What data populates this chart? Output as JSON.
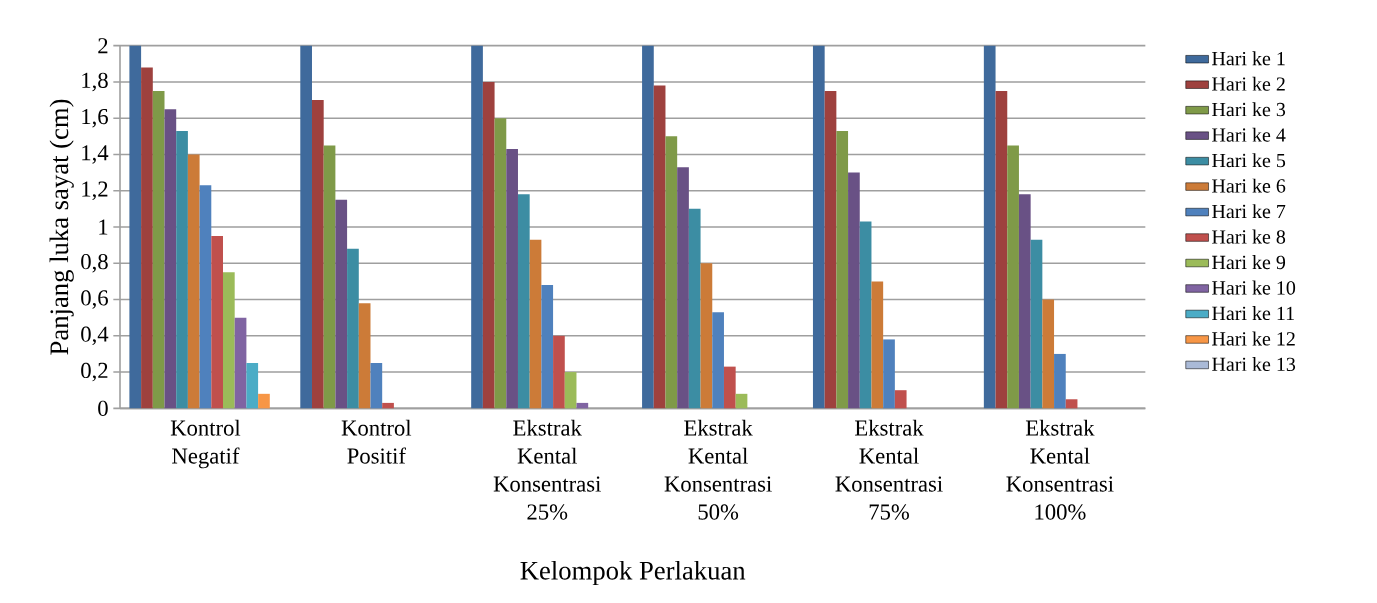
{
  "chart_data": {
    "type": "bar",
    "xlabel": "Kelompok Perlakuan",
    "ylabel": "Panjang luka sayat (cm)",
    "categories": [
      "Kontrol Negatif",
      "Kontrol Positif",
      "Ekstrak Kental Konsentrasi 25%",
      "Ekstrak Kental Konsentrasi 50%",
      "Ekstrak Kental Konsentrasi 75%",
      "Ekstrak Kental Konsentrasi 100%"
    ],
    "ylim": [
      0,
      2
    ],
    "yticks": [
      0,
      {
        "value": 0.2,
        "label": "0,2"
      },
      {
        "value": 0.4,
        "label": "0,4"
      },
      {
        "value": 0.6,
        "label": "0,6"
      },
      {
        "value": 0.8,
        "label": "0,8"
      },
      1,
      {
        "value": 1.2,
        "label": "1,2"
      },
      {
        "value": 1.4,
        "label": "1,4"
      },
      {
        "value": 1.6,
        "label": "1,6"
      },
      {
        "value": 1.8,
        "label": "1,8"
      },
      2
    ],
    "grid": "y",
    "legend": "right",
    "series": [
      {
        "name": "Hari ke 1",
        "color": "#3f6a9c",
        "values": [
          2,
          2,
          2,
          2,
          2,
          2
        ]
      },
      {
        "name": "Hari ke 2",
        "color": "#9e413e",
        "values": [
          1.88,
          1.7,
          1.8,
          1.78,
          1.75,
          1.75
        ]
      },
      {
        "name": "Hari ke 3",
        "color": "#7f9a48",
        "values": [
          1.75,
          1.45,
          1.6,
          1.5,
          1.53,
          1.45
        ]
      },
      {
        "name": "Hari ke 4",
        "color": "#695185",
        "values": [
          1.65,
          1.15,
          1.43,
          1.33,
          1.3,
          1.18
        ]
      },
      {
        "name": "Hari ke 5",
        "color": "#3c8da3",
        "values": [
          1.53,
          0.88,
          1.18,
          1.1,
          1.03,
          0.93
        ]
      },
      {
        "name": "Hari ke 6",
        "color": "#cc7b38",
        "values": [
          1.4,
          0.58,
          0.93,
          0.8,
          0.7,
          0.6
        ]
      },
      {
        "name": "Hari ke 7",
        "color": "#4f81bd",
        "values": [
          1.23,
          0.25,
          0.68,
          0.53,
          0.38,
          0.3
        ]
      },
      {
        "name": "Hari ke 8",
        "color": "#c0504d",
        "values": [
          0.95,
          0.03,
          0.4,
          0.23,
          0.1,
          0.05
        ]
      },
      {
        "name": "Hari ke 9",
        "color": "#9bbb59",
        "values": [
          0.75,
          0,
          0.2,
          0.08,
          0,
          0
        ]
      },
      {
        "name": "Hari ke 10",
        "color": "#8064a2",
        "values": [
          0.5,
          0,
          0.03,
          0,
          0,
          0
        ]
      },
      {
        "name": "Hari ke 11",
        "color": "#4bacc6",
        "values": [
          0.25,
          0,
          0,
          0,
          0,
          0
        ]
      },
      {
        "name": "Hari ke 12",
        "color": "#f79646",
        "values": [
          0.08,
          0,
          0,
          0,
          0,
          0
        ]
      },
      {
        "name": "Hari ke 13",
        "color": "#aabad7",
        "values": [
          0,
          0,
          0,
          0,
          0,
          0
        ]
      }
    ]
  }
}
